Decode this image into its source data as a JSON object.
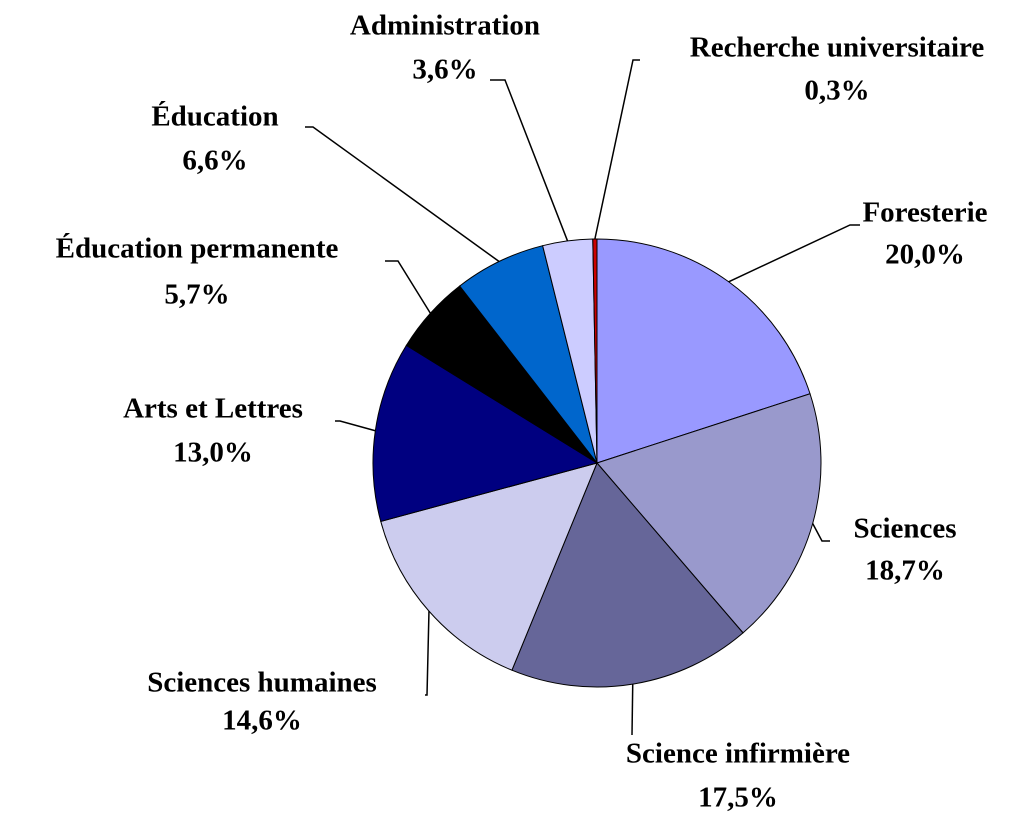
{
  "chart_data": {
    "type": "pie",
    "categories": [
      "Foresterie",
      "Sciences",
      "Science infirmière",
      "Sciences humaines",
      "Arts et Lettres",
      "Éducation permanente",
      "Éducation",
      "Administration",
      "Recherche universitaire"
    ],
    "values": [
      20.0,
      18.7,
      17.5,
      14.6,
      13.0,
      5.7,
      6.6,
      3.6,
      0.3
    ],
    "value_labels": [
      "20,0%",
      "18,7%",
      "17,5%",
      "14,6%",
      "13,0%",
      "5,7%",
      "6,6%",
      "3,6%",
      "0,3%"
    ],
    "colors": [
      "#9999ff",
      "#9999cc",
      "#666699",
      "#ccccee",
      "#000080",
      "#000000",
      "#0066cc",
      "#ccccff",
      "#cc0000"
    ]
  }
}
